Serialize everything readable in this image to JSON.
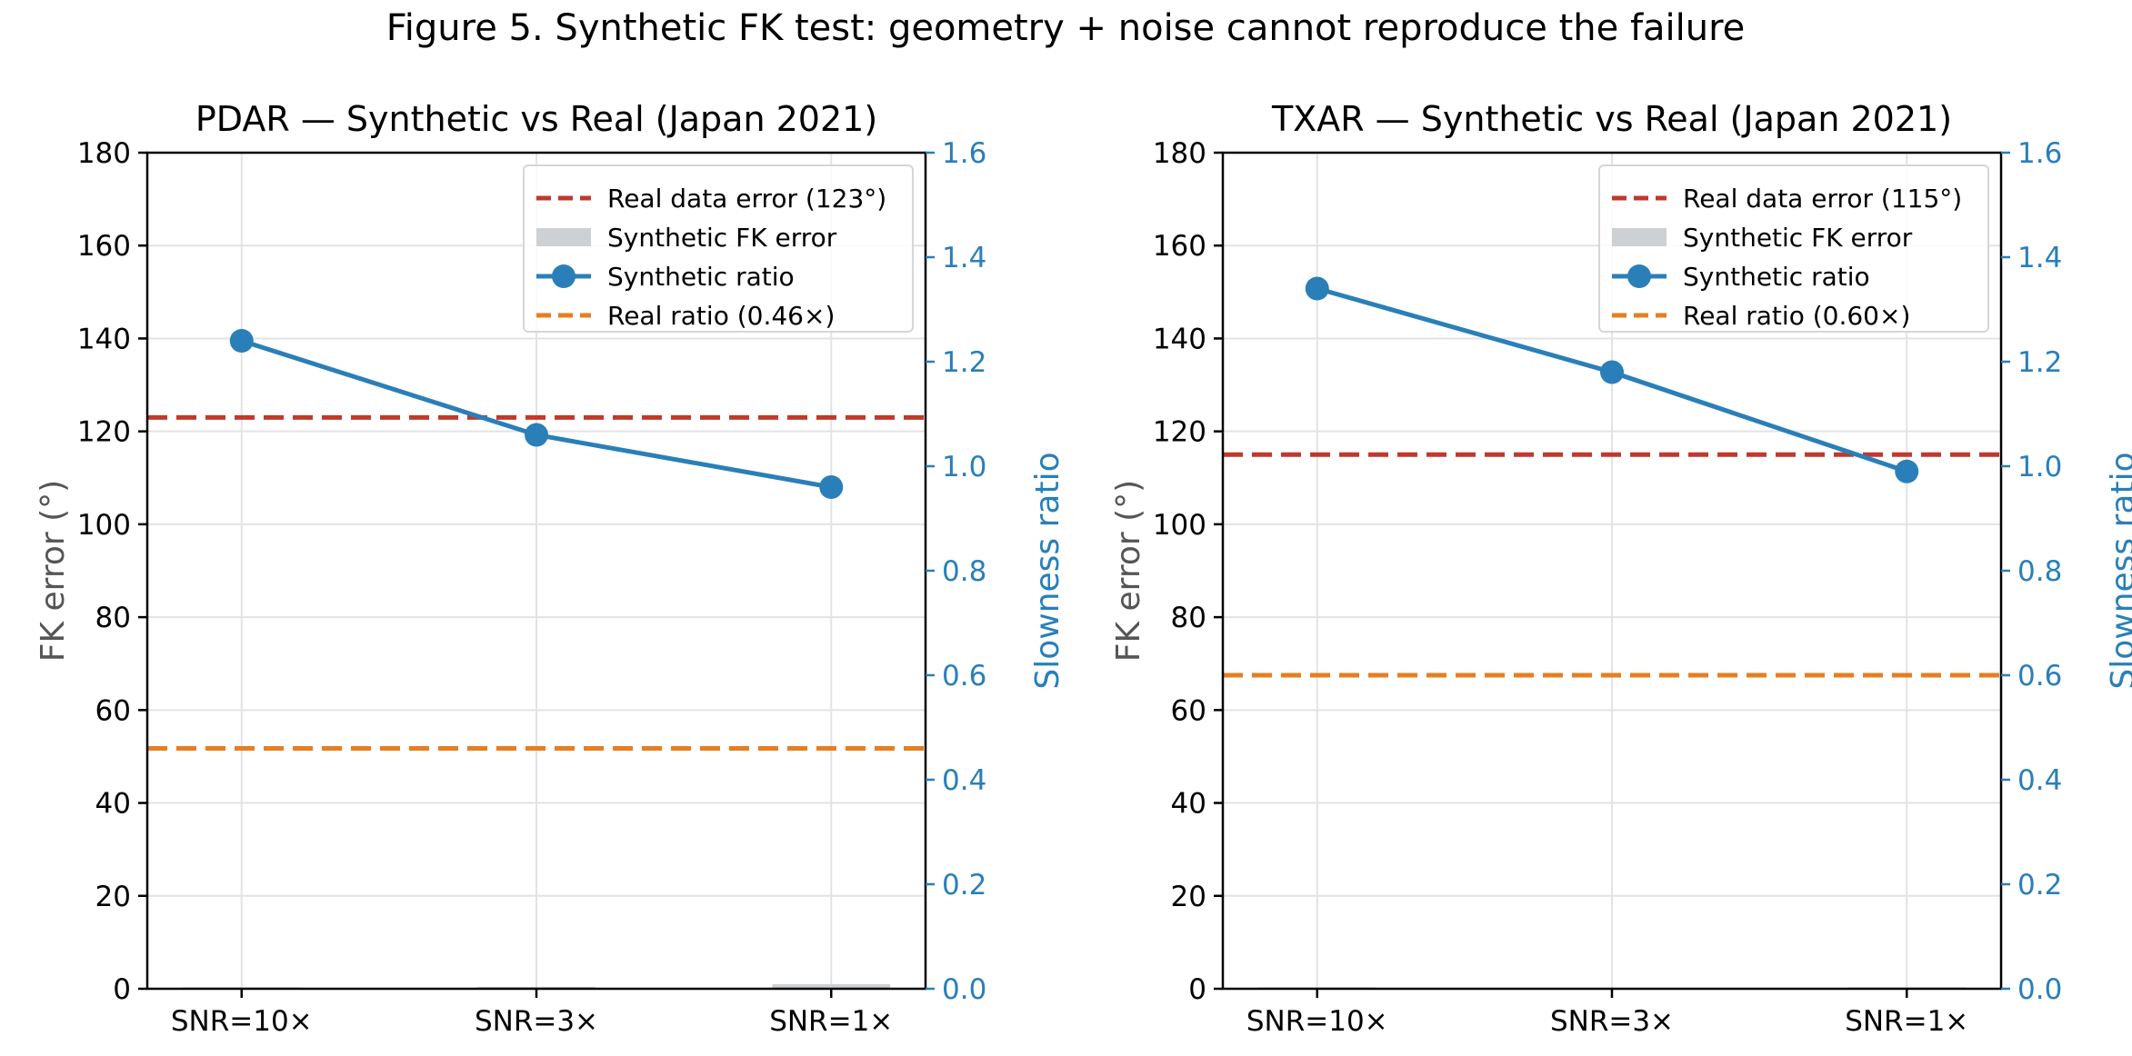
{
  "figure": {
    "title": "Figure 5. Synthetic FK test: geometry + noise cannot reproduce the failure"
  },
  "colors": {
    "real_error": "#c0392b",
    "synthetic_bar": "#ced1d4",
    "synthetic_ratio": "#2a7fb8",
    "real_ratio": "#e67e22",
    "grid": "#e3e3e3",
    "text": "#000000",
    "left_axis_label": "#555555"
  },
  "chart_data": [
    {
      "type": "bar",
      "title": "PDAR — Synthetic vs Real (Japan 2021)",
      "ylabel": "FK error (°)",
      "y2label": "Slowness ratio",
      "categories": [
        "SNR=10×",
        "SNR=3×",
        "SNR=1×"
      ],
      "ylim": [
        0,
        180
      ],
      "yticks": [
        0,
        20,
        40,
        60,
        80,
        100,
        120,
        140,
        160,
        180
      ],
      "y2lim": [
        0.0,
        1.6
      ],
      "y2ticks": [
        "0.0",
        "0.2",
        "0.4",
        "0.6",
        "0.8",
        "1.0",
        "1.2",
        "1.4",
        "1.6"
      ],
      "grid": true,
      "legend_position": "top-right",
      "real_error": 123,
      "real_ratio": 0.46,
      "series": [
        {
          "name": "Synthetic FK error",
          "kind": "bar",
          "values": [
            0.3,
            0.4,
            1.0
          ]
        },
        {
          "name": "Synthetic ratio",
          "kind": "line",
          "axis": "right",
          "values": [
            1.24,
            1.06,
            0.96
          ]
        }
      ],
      "legend": [
        "Real data error (123°)",
        "Synthetic FK error",
        "Synthetic ratio",
        "Real ratio (0.46×)"
      ]
    },
    {
      "type": "bar",
      "title": "TXAR — Synthetic vs Real (Japan 2021)",
      "ylabel": "FK error (°)",
      "y2label": "Slowness ratio",
      "categories": [
        "SNR=10×",
        "SNR=3×",
        "SNR=1×"
      ],
      "ylim": [
        0,
        180
      ],
      "yticks": [
        0,
        20,
        40,
        60,
        80,
        100,
        120,
        140,
        160,
        180
      ],
      "y2lim": [
        0.0,
        1.6
      ],
      "y2ticks": [
        "0.0",
        "0.2",
        "0.4",
        "0.6",
        "0.8",
        "1.0",
        "1.2",
        "1.4",
        "1.6"
      ],
      "grid": true,
      "legend_position": "top-right",
      "real_error": 115,
      "real_ratio": 0.6,
      "series": [
        {
          "name": "Synthetic FK error",
          "kind": "bar",
          "values": [
            0.3,
            0.2,
            0.3
          ]
        },
        {
          "name": "Synthetic ratio",
          "kind": "line",
          "axis": "right",
          "values": [
            1.34,
            1.18,
            0.99
          ]
        }
      ],
      "legend": [
        "Real data error (115°)",
        "Synthetic FK error",
        "Synthetic ratio",
        "Real ratio (0.60×)"
      ]
    }
  ]
}
